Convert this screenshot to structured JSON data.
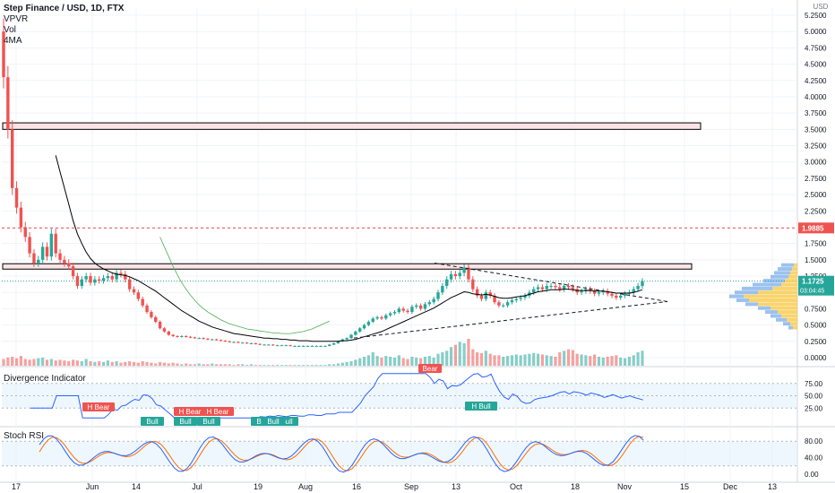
{
  "header": {
    "title": "Step Finance / USD, 1D, FTX",
    "indicators": [
      "VPVR",
      "Vol",
      "4MA"
    ],
    "currency": "USD"
  },
  "chart_data": {
    "type": "candlestick",
    "x_tick_labels": [
      "17",
      "Jun",
      "14",
      "Jul",
      "19",
      "Aug",
      "16",
      "Sep",
      "13",
      "Oct",
      "18",
      "Nov",
      "15",
      "Dec",
      "13"
    ],
    "price_axis_ticks": [
      "5.2500",
      "5.0000",
      "4.7500",
      "4.5000",
      "4.2500",
      "4.0000",
      "3.7500",
      "3.5000",
      "3.2500",
      "3.0000",
      "2.7500",
      "2.5000",
      "2.2500",
      "2.0000",
      "1.7500",
      "1.5000",
      "1.2500",
      "1.0000",
      "0.7500",
      "0.5000",
      "0.2500",
      "0.0000"
    ],
    "price_axis_values": [
      5.25,
      5.0,
      4.75,
      4.5,
      4.25,
      4.0,
      3.75,
      3.5,
      3.25,
      3.0,
      2.75,
      2.5,
      2.25,
      2.0,
      1.75,
      1.5,
      1.25,
      1.0,
      0.75,
      0.5,
      0.25,
      0.0
    ],
    "current_price": "1.1725",
    "countdown": "03:04:45",
    "resistance_line_price": "1.9885",
    "resistance_line_value": 1.9885,
    "zones": [
      {
        "name": "resistance-zone",
        "from": 3.5,
        "to": 3.6
      },
      {
        "name": "support-zone",
        "from": 1.38,
        "to": 1.44
      }
    ],
    "closes": [
      4.3,
      3.5,
      2.6,
      2.3,
      2.0,
      1.85,
      1.6,
      1.45,
      1.5,
      1.7,
      1.55,
      1.9,
      1.6,
      1.5,
      1.45,
      1.4,
      1.25,
      1.1,
      1.2,
      1.25,
      1.15,
      1.2,
      1.18,
      1.22,
      1.25,
      1.2,
      1.3,
      1.28,
      1.2,
      1.05,
      1.0,
      0.9,
      0.8,
      0.7,
      0.62,
      0.55,
      0.45,
      0.4,
      0.35,
      0.33,
      0.32,
      0.33,
      0.32,
      0.31,
      0.3,
      0.3,
      0.29,
      0.28,
      0.28,
      0.27,
      0.26,
      0.25,
      0.24,
      0.24,
      0.23,
      0.23,
      0.22,
      0.22,
      0.21,
      0.2,
      0.2,
      0.2,
      0.19,
      0.19,
      0.19,
      0.19,
      0.18,
      0.18,
      0.18,
      0.18,
      0.18,
      0.18,
      0.18,
      0.18,
      0.18,
      0.2,
      0.22,
      0.25,
      0.28,
      0.3,
      0.35,
      0.4,
      0.45,
      0.5,
      0.55,
      0.6,
      0.62,
      0.6,
      0.65,
      0.68,
      0.7,
      0.75,
      0.72,
      0.7,
      0.78,
      0.8,
      0.75,
      0.82,
      0.85,
      0.9,
      1.0,
      1.1,
      1.2,
      1.28,
      1.25,
      1.3,
      1.38,
      1.2,
      1.05,
      0.95,
      0.9,
      1.0,
      0.95,
      0.85,
      0.8,
      0.8,
      0.85,
      0.88,
      0.9,
      0.92,
      0.95,
      1.0,
      1.05,
      1.08,
      1.05,
      1.1,
      1.1,
      1.08,
      1.05,
      1.1,
      1.08,
      1.05,
      1.0,
      1.02,
      1.05,
      1.02,
      0.98,
      1.0,
      1.02,
      0.98,
      0.95,
      0.92,
      0.95,
      0.98,
      1.0,
      1.05,
      1.1,
      1.1725
    ],
    "ma_values": [
      null,
      null,
      null,
      null,
      null,
      null,
      null,
      null,
      null,
      null,
      null,
      null,
      3.1,
      2.85,
      2.6,
      2.35,
      2.1,
      1.9,
      1.75,
      1.62,
      1.52,
      1.45,
      1.4,
      1.36,
      1.33,
      1.3,
      1.28,
      1.27,
      1.26,
      1.24,
      1.21,
      1.18,
      1.14,
      1.1,
      1.06,
      1.02,
      0.97,
      0.92,
      0.87,
      0.82,
      0.77,
      0.72,
      0.68,
      0.64,
      0.6,
      0.56,
      0.53,
      0.5,
      0.47,
      0.45,
      0.43,
      0.41,
      0.39,
      0.37,
      0.36,
      0.35,
      0.34,
      0.33,
      0.32,
      0.31,
      0.3,
      0.3,
      0.29,
      0.29,
      0.28,
      0.28,
      0.27,
      0.27,
      0.26,
      0.26,
      0.26,
      0.25,
      0.25,
      0.25,
      0.25,
      0.25,
      0.25,
      0.25,
      0.26,
      0.26,
      0.27,
      0.28,
      0.3,
      0.32,
      0.34,
      0.36,
      0.38,
      0.4,
      0.43,
      0.46,
      0.49,
      0.52,
      0.55,
      0.58,
      0.61,
      0.64,
      0.67,
      0.7,
      0.73,
      0.76,
      0.8,
      0.84,
      0.88,
      0.92,
      0.95,
      0.98,
      1.01,
      1.0,
      0.98,
      0.97,
      0.96,
      0.97,
      0.96,
      0.94,
      0.92,
      0.91,
      0.91,
      0.92,
      0.93,
      0.94,
      0.95,
      0.97,
      0.99,
      1.01,
      1.02,
      1.03,
      1.04,
      1.04,
      1.04,
      1.05,
      1.05,
      1.04,
      1.03,
      1.03,
      1.03,
      1.03,
      1.02,
      1.02,
      1.02,
      1.01,
      1.0,
      0.99,
      0.99,
      0.99,
      0.99,
      1.0,
      1.02,
      1.04
    ],
    "ma2_start_index": 46,
    "ma2_values": [
      1.85,
      1.7,
      1.55,
      1.4,
      1.27,
      1.15,
      1.05,
      0.96,
      0.88,
      0.81,
      0.75,
      0.7,
      0.66,
      0.62,
      0.58,
      0.55,
      0.52,
      0.5,
      0.48,
      0.46,
      0.44,
      0.43,
      0.42,
      0.41,
      0.4,
      0.39,
      0.38,
      0.38,
      0.37,
      0.37,
      0.37,
      0.38,
      0.39,
      0.4,
      0.42,
      0.44,
      0.47,
      0.5,
      0.53,
      0.56
    ],
    "volumes": [
      9,
      11,
      12,
      10,
      13,
      9,
      8,
      9,
      10,
      11,
      8,
      9,
      7,
      8,
      7,
      6,
      8,
      7,
      6,
      9,
      6,
      5,
      6,
      5,
      7,
      5,
      6,
      4,
      5,
      6,
      5,
      4,
      6,
      5,
      4,
      3,
      5,
      4,
      3,
      4,
      3,
      2,
      3,
      2,
      2,
      3,
      2,
      2,
      3,
      2,
      2,
      2,
      2,
      1,
      2,
      2,
      1,
      2,
      1,
      1,
      1,
      1,
      1,
      1,
      1,
      1,
      1,
      1,
      1,
      1,
      1,
      1,
      1,
      1,
      1,
      2,
      2,
      3,
      4,
      5,
      6,
      8,
      10,
      12,
      14,
      18,
      13,
      11,
      13,
      12,
      11,
      14,
      10,
      9,
      12,
      11,
      10,
      12,
      13,
      11,
      16,
      18,
      20,
      25,
      28,
      32,
      30,
      36,
      22,
      18,
      17,
      20,
      16,
      14,
      14,
      12,
      13,
      14,
      15,
      14,
      15,
      16,
      17,
      16,
      15,
      14,
      13,
      12,
      18,
      20,
      22,
      21,
      16,
      15,
      14,
      13,
      15,
      12,
      11,
      12,
      13,
      14,
      11,
      10,
      12,
      14,
      18,
      20
    ],
    "divergence_indicator": {
      "name": "Divergence Indicator",
      "axis_ticks": [
        "75.00",
        "50.00",
        "25.00"
      ],
      "axis_values": [
        75,
        50,
        25
      ],
      "labels": [
        {
          "text": "H Bear",
          "type": "bear"
        },
        {
          "text": "H Bear",
          "type": "bear"
        },
        {
          "text": "H Bear",
          "type": "bear"
        },
        {
          "text": "Bear",
          "type": "bear"
        },
        {
          "text": "H Bull",
          "type": "bull"
        },
        {
          "text": "Bull",
          "type": "bull"
        },
        {
          "text": "Bull",
          "type": "bull"
        },
        {
          "text": "Bull",
          "type": "bull"
        },
        {
          "text": "Bull",
          "type": "bull"
        },
        {
          "text": "Bull",
          "type": "bull"
        },
        {
          "text": "Bull",
          "type": "bull"
        }
      ]
    },
    "stoch_rsi": {
      "name": "Stoch RSI",
      "axis_ticks": [
        "80.00",
        "40.00",
        "0.00"
      ],
      "axis_values": [
        80,
        40,
        0
      ]
    },
    "colors": {
      "up": "#26a69a",
      "down": "#ef5350",
      "ma": "#000000",
      "ma2": "#4caf50",
      "rsi": "#2962ff",
      "stoch_k": "#2962ff",
      "stoch_d": "#ff6d00",
      "zone_fill": "#fce4e6",
      "zone_border": "#000000",
      "vpvr_up": "#4a90e2",
      "vpvr_down": "#f7c948"
    }
  }
}
